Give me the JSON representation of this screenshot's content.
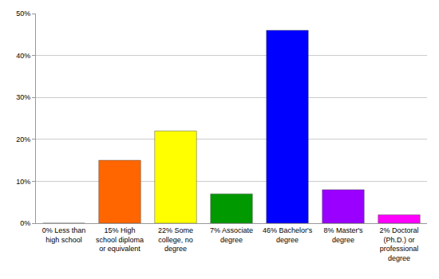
{
  "chart_data": {
    "type": "bar",
    "categories": [
      "0% Less than high school",
      "15% High school diploma or equivalent",
      "22% Some college, no degree",
      "7% Associate degree",
      "46% Bachelor's degree",
      "8% Master's degree",
      "2% Doctoral (Ph.D.) or professional degree"
    ],
    "values": [
      0,
      15,
      22,
      7,
      46,
      8,
      2
    ],
    "colors": [
      "#ff0000",
      "#ff6600",
      "#ffff00",
      "#009900",
      "#0000ff",
      "#9900ff",
      "#ff00ff"
    ],
    "ylim": [
      0,
      50
    ],
    "yticks": [
      {
        "value": 0,
        "label": "0%"
      },
      {
        "value": 10,
        "label": "10%"
      },
      {
        "value": 20,
        "label": "20%"
      },
      {
        "value": 30,
        "label": "30%"
      },
      {
        "value": 40,
        "label": "40%"
      },
      {
        "value": 50,
        "label": "50%"
      }
    ],
    "grid": true
  }
}
